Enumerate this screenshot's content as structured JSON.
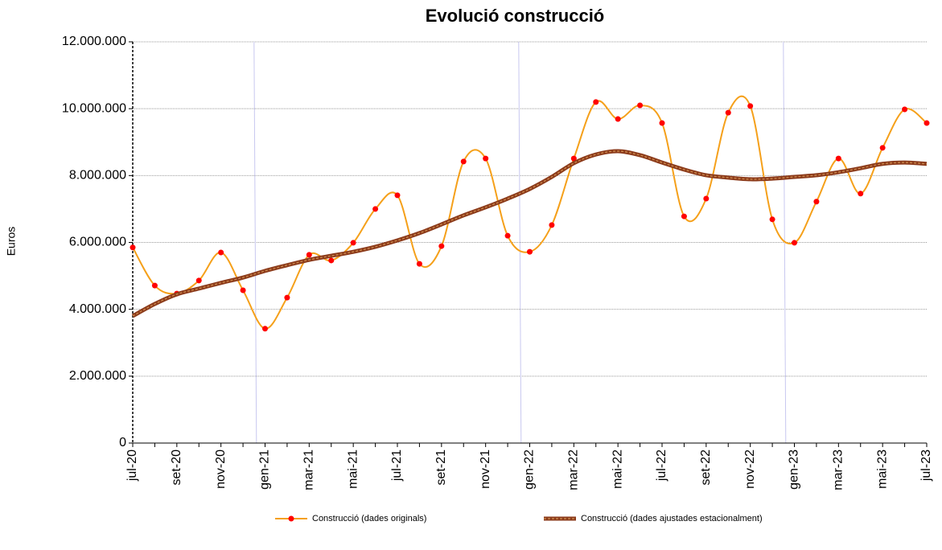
{
  "chart_data": {
    "type": "line",
    "title": "Evolució construcció",
    "y_label": "Euros",
    "categories": [
      "jul-20",
      null,
      "set-20",
      null,
      "nov-20",
      null,
      "gen-21",
      null,
      "mar-21",
      null,
      "mai-21",
      null,
      "jul-21",
      null,
      "set-21",
      null,
      "nov-21",
      null,
      "gen-22",
      null,
      "mar-22",
      null,
      "mai-22",
      null,
      "jul-22",
      null,
      "set-22",
      null,
      "nov-22",
      null,
      "gen-23",
      null,
      "mar-23",
      null,
      "mai-23",
      null,
      "jul-23"
    ],
    "series": [
      {
        "name": "Construcció (dades originals)",
        "color": "#f5a01a",
        "marker_color": "#ff0000",
        "values": [
          5850000,
          4710000,
          4470000,
          4860000,
          5700000,
          4570000,
          3420000,
          4350000,
          5630000,
          5460000,
          5990000,
          7000000,
          7410000,
          5360000,
          5890000,
          8420000,
          8510000,
          6200000,
          5720000,
          6520000,
          8510000,
          10200000,
          9690000,
          10100000,
          9570000,
          6780000,
          7310000,
          9880000,
          10080000,
          6690000,
          5990000,
          7220000,
          8510000,
          7460000,
          8830000,
          9980000,
          9570000
        ]
      },
      {
        "name": "Construcció (dades ajustades estacionalment)",
        "color": "#8b3a1a",
        "dash_color": "#c8844a",
        "values": [
          3800000,
          4160000,
          4450000,
          4620000,
          4790000,
          4950000,
          5150000,
          5320000,
          5480000,
          5600000,
          5720000,
          5870000,
          6060000,
          6280000,
          6540000,
          6810000,
          7050000,
          7310000,
          7600000,
          7960000,
          8370000,
          8630000,
          8730000,
          8610000,
          8390000,
          8180000,
          8010000,
          7940000,
          7890000,
          7910000,
          7960000,
          8010000,
          8100000,
          8220000,
          8350000,
          8390000,
          8350000
        ]
      }
    ],
    "ylim": [
      0,
      12000000
    ],
    "yticks": [
      0,
      {
        "value": 2000000,
        "label": "2.000.000"
      },
      {
        "value": 4000000,
        "label": "4.000.000"
      },
      {
        "value": 6000000,
        "label": "6.000.000"
      },
      {
        "value": 8000000,
        "label": "8.000.000"
      },
      {
        "value": 10000000,
        "label": "10.000.000"
      },
      {
        "value": 12000000,
        "label": "12.000.000"
      }
    ],
    "grid": true,
    "legend": "bottom"
  }
}
